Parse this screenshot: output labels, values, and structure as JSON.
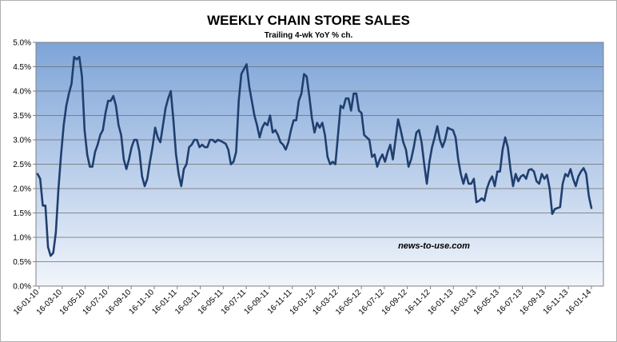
{
  "chart_data": {
    "type": "line",
    "title": "WEEKLY CHAIN STORE SALES",
    "subtitle": "Trailing 4-wk YoY % ch.",
    "watermark": "news-to-use.com",
    "xlabel": "",
    "ylabel": "",
    "ylim": [
      0,
      5
    ],
    "y_ticks": [
      "0.0%",
      "0.5%",
      "1.0%",
      "1.5%",
      "2.0%",
      "2.5%",
      "3.0%",
      "3.5%",
      "4.0%",
      "4.5%",
      "5.0%"
    ],
    "x_ticks": [
      "16-01-10",
      "16-03-10",
      "16-05-10",
      "16-07-10",
      "16-09-10",
      "16-11-10",
      "16-01-11",
      "16-03-11",
      "16-05-11",
      "16-07-11",
      "16-09-11",
      "16-11-11",
      "16-01-12",
      "16-03-12",
      "16-05-12",
      "16-07-12",
      "16-09-12",
      "16-11-12",
      "16-01-13",
      "16-03-13",
      "16-05-13",
      "16-07-13",
      "16-09-13",
      "16-11-13",
      "16-01-14"
    ],
    "grid": true,
    "legend": "none",
    "colors": {
      "line": "#1f3f6e",
      "plot_top": "#7ea4d8",
      "plot_bottom": "#f1f5fb",
      "grid": "#6b6b6b"
    },
    "series": [
      {
        "values": [
          2.3,
          2.2,
          1.65,
          1.65,
          0.8,
          0.62,
          0.68,
          1.1,
          2.0,
          2.7,
          3.3,
          3.7,
          3.95,
          4.15,
          4.7,
          4.65,
          4.7,
          4.3,
          3.2,
          2.7,
          2.45,
          2.45,
          2.75,
          2.9,
          3.1,
          3.2,
          3.55,
          3.8,
          3.8,
          3.9,
          3.7,
          3.3,
          3.1,
          2.6,
          2.4,
          2.6,
          2.85,
          3.0,
          3.0,
          2.75,
          2.25,
          2.05,
          2.2,
          2.55,
          2.85,
          3.25,
          3.05,
          2.95,
          3.3,
          3.65,
          3.85,
          4.0,
          3.4,
          2.7,
          2.3,
          2.05,
          2.4,
          2.5,
          2.85,
          2.9,
          3.0,
          3.0,
          2.85,
          2.9,
          2.85,
          2.85,
          3.0,
          3.0,
          2.95,
          3.0,
          2.98,
          2.95,
          2.92,
          2.8,
          2.5,
          2.55,
          2.75,
          3.8,
          4.35,
          4.45,
          4.55,
          4.1,
          3.8,
          3.5,
          3.3,
          3.05,
          3.25,
          3.35,
          3.3,
          3.5,
          3.15,
          3.2,
          3.1,
          2.95,
          2.9,
          2.8,
          2.95,
          3.2,
          3.4,
          3.4,
          3.8,
          3.95,
          4.35,
          4.3,
          3.9,
          3.45,
          3.15,
          3.35,
          3.25,
          3.35,
          3.1,
          2.65,
          2.5,
          2.55,
          2.5,
          3.1,
          3.7,
          3.65,
          3.85,
          3.85,
          3.6,
          3.95,
          3.95,
          3.6,
          3.55,
          3.1,
          3.05,
          3.0,
          2.65,
          2.7,
          2.45,
          2.6,
          2.7,
          2.55,
          2.75,
          2.9,
          2.6,
          3.0,
          3.42,
          3.2,
          2.95,
          2.8,
          2.45,
          2.6,
          2.85,
          3.15,
          3.2,
          2.95,
          2.5,
          2.1,
          2.55,
          2.85,
          3.05,
          3.28,
          3.0,
          2.85,
          3.0,
          3.25,
          3.22,
          3.2,
          3.05,
          2.6,
          2.3,
          2.1,
          2.3,
          2.1,
          2.1,
          2.2,
          1.72,
          1.75,
          1.8,
          1.75,
          2.0,
          2.15,
          2.25,
          2.05,
          2.35,
          2.35,
          2.8,
          3.05,
          2.85,
          2.4,
          2.05,
          2.3,
          2.15,
          2.25,
          2.28,
          2.2,
          2.38,
          2.4,
          2.35,
          2.15,
          2.1,
          2.3,
          2.2,
          2.28,
          2.0,
          1.48,
          1.58,
          1.6,
          1.62,
          2.1,
          2.3,
          2.25,
          2.4,
          2.2,
          2.05,
          2.25,
          2.35,
          2.42,
          2.3,
          1.85,
          1.6
        ]
      }
    ]
  }
}
